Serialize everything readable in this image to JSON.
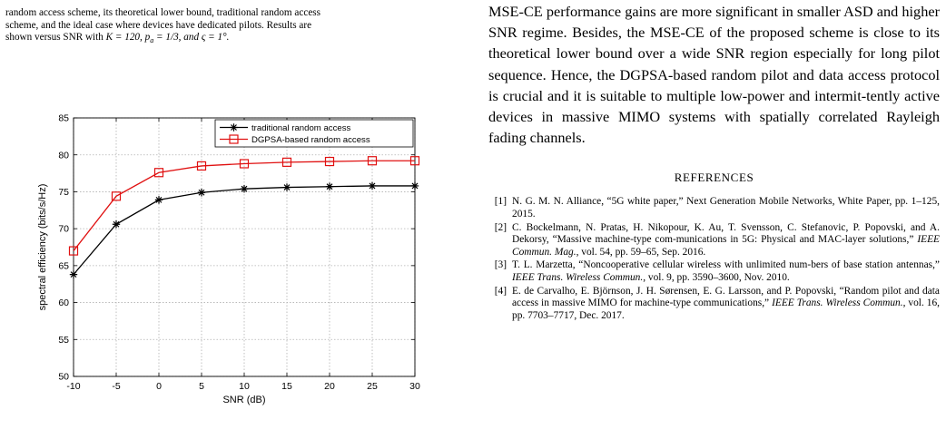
{
  "figure_caption": {
    "line1": "random access scheme, its theoretical lower bound, traditional random access",
    "line2": "scheme, and the ideal case where devices have dedicated pilots. Results are",
    "line3_prefix": "shown versus SNR with ",
    "line3_math": "K = 120, p",
    "line3_sub": "a",
    "line3_math2": " = 1/3, and ς = 1°."
  },
  "chart_data": {
    "type": "line",
    "xlabel": "SNR (dB)",
    "ylabel": "spectral efficiency (bits/s/Hz)",
    "x": [
      -10,
      -5,
      0,
      5,
      10,
      15,
      20,
      25,
      30
    ],
    "xlim": [
      -10,
      30
    ],
    "ylim": [
      50,
      85
    ],
    "xticks": [
      "-10",
      "-5",
      "0",
      "5",
      "10",
      "15",
      "20",
      "25",
      "30"
    ],
    "yticks": [
      "50",
      "55",
      "60",
      "65",
      "70",
      "75",
      "80",
      "85"
    ],
    "grid": true,
    "legend_position": "top-right",
    "series": [
      {
        "name": "traditional random access",
        "color": "#000000",
        "marker": "asterisk",
        "values": [
          63.8,
          70.6,
          73.9,
          74.9,
          75.4,
          75.6,
          75.7,
          75.8,
          75.8
        ]
      },
      {
        "name": "DGPSA-based random access",
        "color": "#e01010",
        "marker": "square",
        "values": [
          67.0,
          74.4,
          77.6,
          78.5,
          78.8,
          79.0,
          79.1,
          79.2,
          79.2
        ]
      }
    ]
  },
  "body_text": "MSE-CE performance gains are more significant in smaller ASD and higher SNR regime. Besides, the MSE-CE of the proposed scheme is close to its theoretical lower bound over a wide SNR region especially for long pilot sequence. Hence, the DGPSA-based random pilot and data access protocol is crucial and it is suitable to multiple low-power and intermit-tently active devices in massive MIMO systems with spatially correlated Rayleigh fading channels.",
  "references_heading": "REFERENCES",
  "references": [
    {
      "num": "[1]",
      "pre": "N. G. M. N. Alliance, “5G white paper,” Next Generation Mobile Networks, White Paper, pp. 1–125, 2015.",
      "venue": "",
      "post": ""
    },
    {
      "num": "[2]",
      "pre": "C. Bockelmann, N. Pratas, H. Nikopour, K. Au, T. Svensson, C. Stefanovic, P. Popovski, and A. Dekorsy, “Massive machine-type com-munications in 5G: Physical and MAC-layer solutions,” ",
      "venue": "IEEE Commun. Mag.",
      "post": ", vol. 54, pp. 59–65, Sep. 2016."
    },
    {
      "num": "[3]",
      "pre": "T. L. Marzetta, “Noncooperative cellular wireless with unlimited num-bers of base station antennas,” ",
      "venue": "IEEE Trans. Wireless Commun.",
      "post": ", vol. 9, pp. 3590–3600, Nov. 2010."
    },
    {
      "num": "[4]",
      "pre": "E. de Carvalho, E. Björnson, J. H. Sørensen, E. G. Larsson, and P. Popovski, “Random pilot and data access in massive MIMO for machine-type communications,” ",
      "venue": "IEEE Trans. Wireless Commun.",
      "post": ", vol. 16, pp. 7703–7717, Dec. 2017."
    }
  ]
}
